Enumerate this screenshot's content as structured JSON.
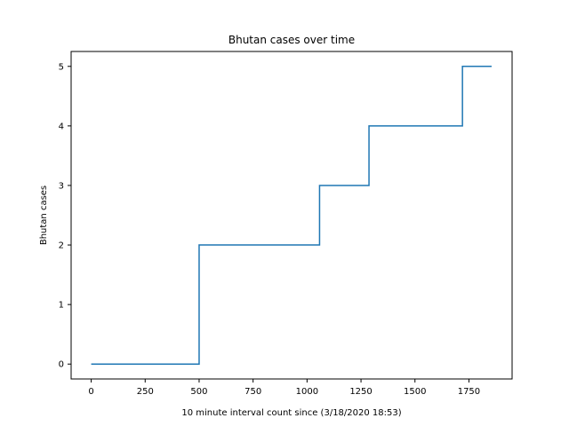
{
  "chart_data": {
    "type": "line",
    "title": "Bhutan cases over time",
    "xlabel": "10 minute interval count since (3/18/2020 18:53)",
    "ylabel": "Bhutan cases",
    "xlim": [
      -93,
      1950
    ],
    "ylim": [
      -0.25,
      5.25
    ],
    "xticks": [
      0,
      250,
      500,
      750,
      1000,
      1250,
      1500,
      1750
    ],
    "yticks": [
      0,
      1,
      2,
      3,
      4,
      5
    ],
    "grid": false,
    "line_color": "#1f77b4",
    "line_style": "step",
    "series": [
      {
        "x": [
          0,
          500,
          500,
          1058,
          1058,
          1287,
          1287,
          1720,
          1720,
          1855
        ],
        "y": [
          0,
          0,
          2,
          2,
          3,
          3,
          4,
          4,
          5,
          5
        ]
      }
    ]
  }
}
